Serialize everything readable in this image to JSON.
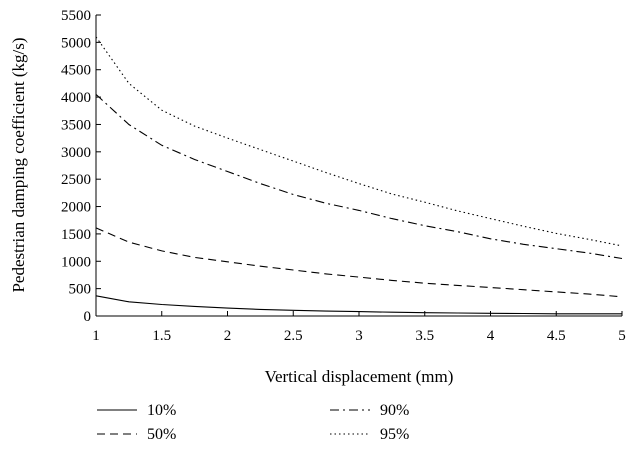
{
  "chart_data": {
    "type": "line",
    "title": "",
    "xlabel": "Vertical displacement (mm)",
    "ylabel": "Pedestrian damping coefficient (kg/s)",
    "xlim": [
      1,
      5
    ],
    "ylim": [
      0,
      5500
    ],
    "xticks": [
      "1",
      "1.5",
      "2",
      "2.5",
      "3",
      "3.5",
      "4",
      "4.5",
      "5"
    ],
    "yticks": [
      "0",
      "500",
      "1000",
      "1500",
      "2000",
      "2500",
      "3000",
      "3500",
      "4000",
      "4500",
      "5000",
      "5500"
    ],
    "grid": false,
    "legend_position": "bottom",
    "x": [
      1,
      1.25,
      1.5,
      1.75,
      2,
      2.25,
      2.5,
      2.75,
      3,
      3.25,
      3.5,
      3.75,
      4,
      4.25,
      4.5,
      4.75,
      5
    ],
    "series": [
      {
        "name": "10%",
        "style": "solid",
        "values": [
          370,
          260,
          210,
          175,
          145,
          120,
          105,
          90,
          80,
          70,
          60,
          55,
          50,
          45,
          40,
          40,
          40
        ]
      },
      {
        "name": "50%",
        "style": "dashed",
        "values": [
          1610,
          1350,
          1190,
          1070,
          990,
          910,
          840,
          770,
          710,
          650,
          600,
          560,
          520,
          480,
          440,
          400,
          350
        ]
      },
      {
        "name": "90%",
        "style": "dashdot",
        "values": [
          4050,
          3500,
          3120,
          2860,
          2640,
          2420,
          2220,
          2060,
          1930,
          1780,
          1650,
          1540,
          1410,
          1310,
          1230,
          1150,
          1050
        ]
      },
      {
        "name": "95%",
        "style": "dotted",
        "values": [
          5100,
          4250,
          3760,
          3470,
          3250,
          3040,
          2830,
          2620,
          2420,
          2230,
          2080,
          1920,
          1780,
          1640,
          1510,
          1400,
          1280
        ]
      }
    ]
  }
}
